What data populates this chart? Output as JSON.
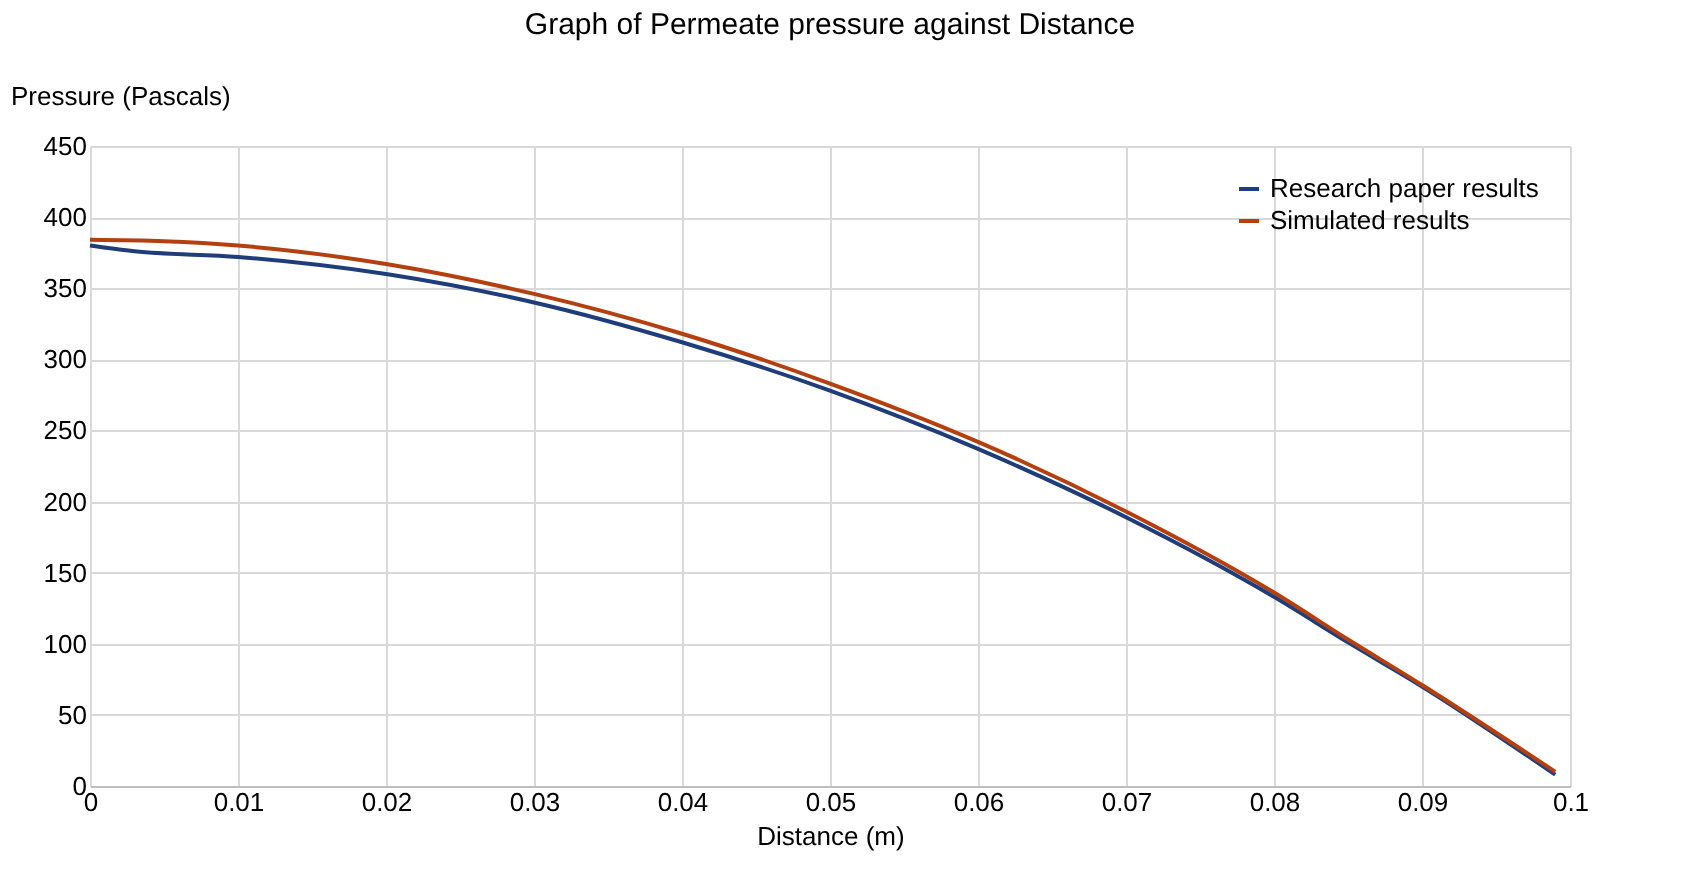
{
  "chart_data": {
    "type": "line",
    "title": "Graph of Permeate pressure against Distance",
    "xlabel": "Distance (m)",
    "ylabel": "Pressure (Pascals)",
    "xlim": [
      0,
      0.1
    ],
    "xticks": [
      0,
      0.01,
      0.02,
      0.03,
      0.04,
      0.05,
      0.06,
      0.07,
      0.08,
      0.09,
      0.1
    ],
    "ylim": [
      0,
      450
    ],
    "yticks": [
      0,
      50,
      100,
      150,
      200,
      250,
      300,
      350,
      400,
      450
    ],
    "grid": true,
    "legend": "top right",
    "line_style": "solid",
    "marker": "none",
    "series": [
      {
        "name": "Research paper results",
        "color": "#1f3d7a",
        "x": [
          0,
          0.003,
          0.01,
          0.02,
          0.03,
          0.04,
          0.05,
          0.06,
          0.07,
          0.08,
          0.085,
          0.09,
          0.099
        ],
        "values": [
          380,
          376,
          372,
          360,
          340,
          312,
          278,
          237,
          189,
          133,
          101,
          70,
          8
        ]
      },
      {
        "name": "Simulated results",
        "color": "#b5400f",
        "x": [
          0,
          0.005,
          0.01,
          0.02,
          0.03,
          0.04,
          0.05,
          0.06,
          0.07,
          0.08,
          0.085,
          0.09,
          0.099
        ],
        "values": [
          384,
          383,
          380,
          367,
          346,
          318,
          283,
          242,
          193,
          136,
          103,
          71,
          10
        ]
      }
    ]
  }
}
